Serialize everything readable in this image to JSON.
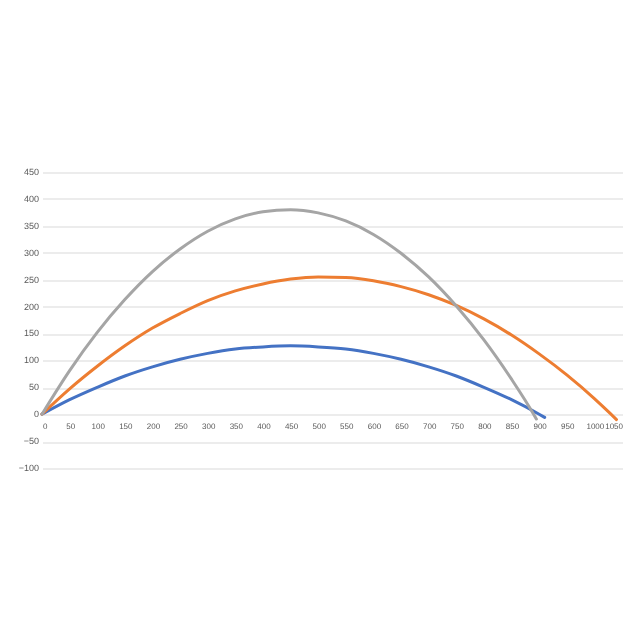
{
  "chart_data": {
    "type": "line",
    "x": [
      0,
      50,
      100,
      150,
      200,
      250,
      300,
      350,
      400,
      450,
      500,
      550,
      600,
      650,
      700,
      750,
      800,
      850,
      900,
      950,
      1000,
      1030,
      1040
    ],
    "series": [
      {
        "color": "#4472c4",
        "x": [
          0,
          50,
          100,
          150,
          200,
          250,
          300,
          350,
          400,
          450,
          500,
          550,
          600,
          650,
          700,
          750,
          800,
          850,
          900,
          910
        ],
        "values": [
          0,
          27,
          50,
          71,
          88,
          102,
          113,
          121,
          125,
          127,
          125,
          121,
          113,
          102,
          88,
          71,
          50,
          27,
          0,
          -6
        ]
      },
      {
        "color": "#ed7d31",
        "values": [
          0,
          47,
          89,
          127,
          160,
          187,
          211,
          229,
          242,
          251,
          255,
          254,
          248,
          237,
          222,
          202,
          177,
          147,
          112,
          73,
          29,
          0,
          -10
        ]
      },
      {
        "color": "#a5a5a5",
        "x": [
          0,
          50,
          100,
          150,
          200,
          250,
          300,
          350,
          400,
          450,
          500,
          550,
          600,
          650,
          700,
          750,
          800,
          850,
          890,
          895
        ],
        "values": [
          0,
          81,
          152,
          213,
          265,
          307,
          340,
          363,
          376,
          380,
          374,
          359,
          334,
          299,
          255,
          201,
          138,
          65,
          0,
          -9
        ]
      }
    ],
    "xlim": [
      0,
      1050
    ],
    "xticks": [
      0,
      50,
      100,
      150,
      200,
      250,
      300,
      350,
      400,
      450,
      500,
      550,
      600,
      650,
      700,
      750,
      800,
      850,
      900,
      950,
      1000,
      1050
    ],
    "ylim": [
      -100,
      450
    ],
    "yticks": [
      -100,
      -50,
      0,
      50,
      100,
      150,
      200,
      250,
      300,
      350,
      400,
      450
    ],
    "grid": "y",
    "legend": false,
    "marker": "none",
    "line_style": "solid"
  }
}
